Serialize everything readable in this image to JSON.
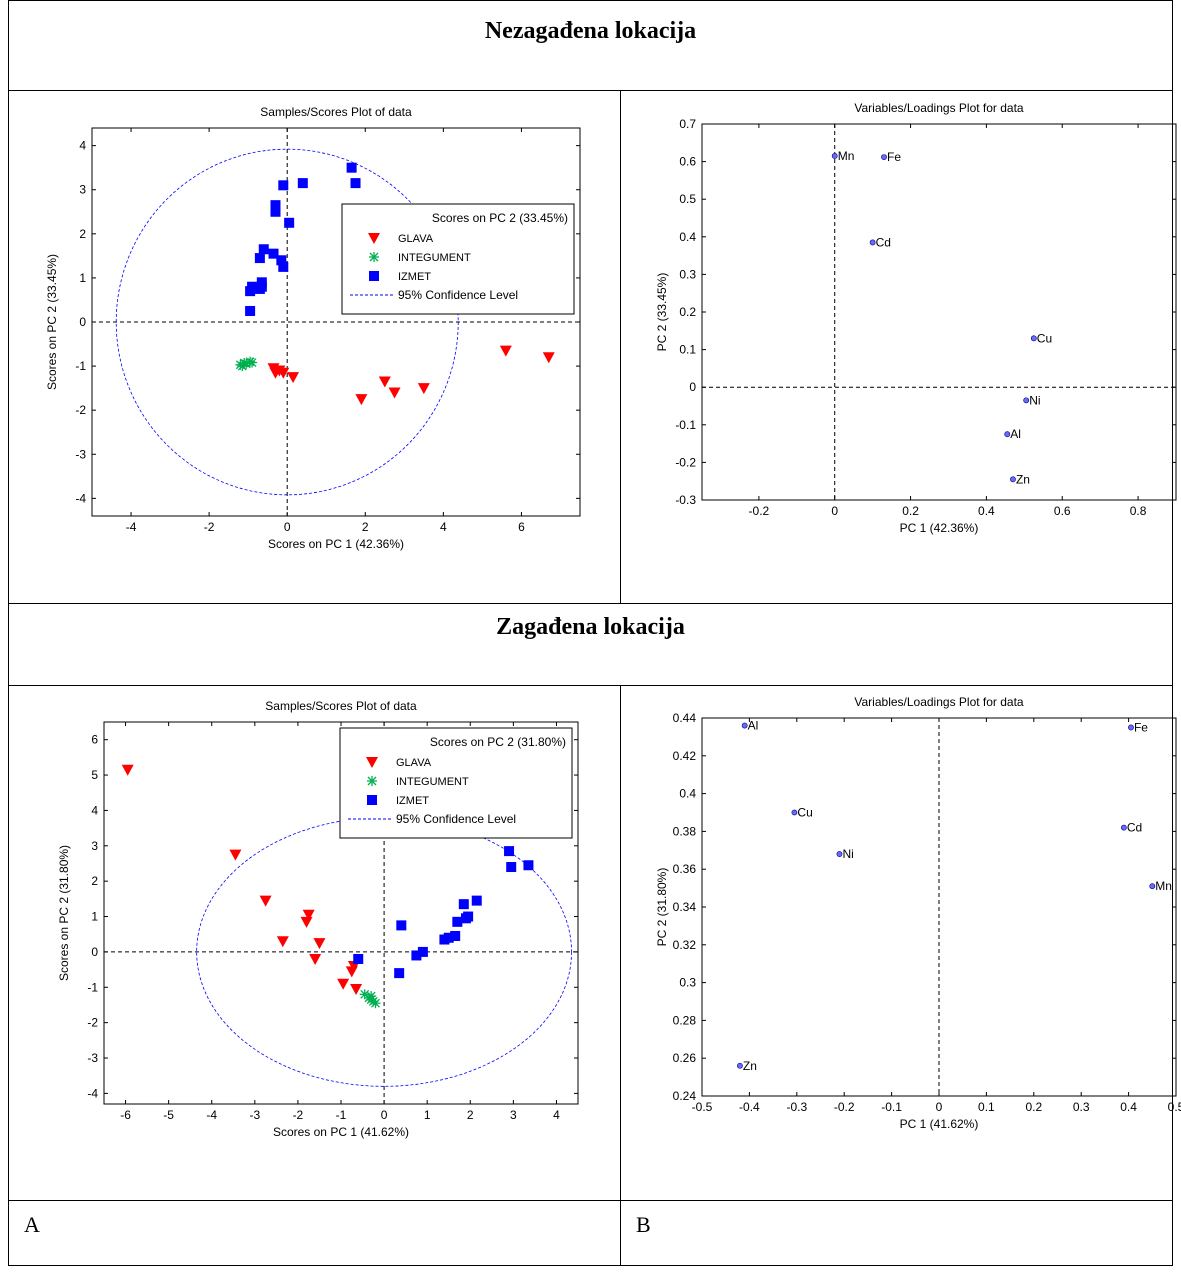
{
  "section_titles": {
    "top": "Nezagađena lokacija",
    "bottom": "Zagađena lokacija"
  },
  "panel_labels": {
    "a": "A",
    "b": "B"
  },
  "chart_data": [
    {
      "id": "top-scores",
      "type": "scatter",
      "title": "Samples/Scores Plot of data",
      "xlabel": "Scores on PC 1 (42.36%)",
      "ylabel": "Scores on PC 2 (33.45%)",
      "xlim": [
        -5,
        7.5
      ],
      "ylim": [
        -4.4,
        4.4
      ],
      "xticks": [
        -4,
        -2,
        0,
        2,
        4,
        6
      ],
      "yticks": [
        -4,
        -3,
        -2,
        -1,
        0,
        1,
        2,
        3,
        4
      ],
      "ellipse": {
        "rx": 4.38,
        "ry": 3.92
      },
      "legend": {
        "position": "top-right",
        "title": "Scores on PC 2 (33.45%)",
        "confidence_label": "95% Confidence Level"
      },
      "series": [
        {
          "name": "GLAVA",
          "marker": "triangle-down",
          "color": "#ff0000",
          "points": [
            [
              -0.35,
              -1.05
            ],
            [
              -0.3,
              -1.15
            ],
            [
              -0.2,
              -1.1
            ],
            [
              -0.1,
              -1.15
            ],
            [
              0.15,
              -1.25
            ],
            [
              1.9,
              -1.75
            ],
            [
              2.5,
              -1.35
            ],
            [
              2.75,
              -1.6
            ],
            [
              3.5,
              -1.5
            ],
            [
              5.6,
              -0.65
            ],
            [
              6.7,
              -0.8
            ]
          ]
        },
        {
          "name": "INTEGUMENT",
          "marker": "asterisk",
          "color": "#00b050",
          "points": [
            [
              -1.2,
              -0.97
            ],
            [
              -1.1,
              -0.93
            ],
            [
              -1.05,
              -0.95
            ],
            [
              -0.95,
              -0.9
            ],
            [
              -0.9,
              -0.92
            ],
            [
              -1.15,
              -1.0
            ]
          ]
        },
        {
          "name": "IZMET",
          "marker": "square",
          "color": "#0000ff",
          "points": [
            [
              -0.95,
              0.25
            ],
            [
              -0.95,
              0.7
            ],
            [
              -0.9,
              0.8
            ],
            [
              -0.7,
              0.75
            ],
            [
              -0.65,
              0.8
            ],
            [
              -0.65,
              0.9
            ],
            [
              -0.7,
              1.45
            ],
            [
              -0.6,
              1.65
            ],
            [
              -0.35,
              1.55
            ],
            [
              -0.15,
              1.4
            ],
            [
              -0.1,
              1.25
            ],
            [
              -0.3,
              2.5
            ],
            [
              -0.3,
              2.65
            ],
            [
              0.05,
              2.25
            ],
            [
              -0.1,
              3.1
            ],
            [
              0.4,
              3.15
            ],
            [
              1.65,
              3.5
            ],
            [
              1.75,
              3.15
            ]
          ]
        }
      ]
    },
    {
      "id": "top-loadings",
      "type": "scatter",
      "title": "Variables/Loadings Plot for data",
      "xlabel": "PC 1 (42.36%)",
      "ylabel": "PC 2 (33.45%)",
      "xlim": [
        -0.35,
        0.9
      ],
      "ylim": [
        -0.3,
        0.7
      ],
      "xticks": [
        -0.2,
        0,
        0.2,
        0.4,
        0.6,
        0.8
      ],
      "yticks": [
        -0.3,
        -0.2,
        -0.1,
        0,
        0.1,
        0.2,
        0.3,
        0.4,
        0.5,
        0.6,
        0.7
      ],
      "marker_color": "#6a6aff",
      "points": [
        {
          "label": "Mn",
          "x": 0.0,
          "y": 0.615
        },
        {
          "label": "Fe",
          "x": 0.13,
          "y": 0.612
        },
        {
          "label": "Cd",
          "x": 0.1,
          "y": 0.385
        },
        {
          "label": "Cu",
          "x": 0.525,
          "y": 0.13
        },
        {
          "label": "Ni",
          "x": 0.505,
          "y": -0.035
        },
        {
          "label": "Al",
          "x": 0.455,
          "y": -0.125
        },
        {
          "label": "Zn",
          "x": 0.47,
          "y": -0.245
        }
      ]
    },
    {
      "id": "bottom-scores",
      "type": "scatter",
      "title": "Samples/Scores Plot of data",
      "xlabel": "Scores on PC 1 (41.62%)",
      "ylabel": "Scores on PC 2 (31.80%)",
      "xlim": [
        -6.5,
        4.5
      ],
      "ylim": [
        -4.3,
        6.5
      ],
      "xticks": [
        -6,
        -5,
        -4,
        -3,
        -2,
        -1,
        0,
        1,
        2,
        3,
        4
      ],
      "yticks": [
        -4,
        -3,
        -2,
        -1,
        0,
        1,
        2,
        3,
        4,
        5,
        6
      ],
      "ellipse": {
        "rx": 4.35,
        "ry": 3.8
      },
      "legend": {
        "position": "top-right",
        "title": "Scores on PC 2 (31.80%)",
        "confidence_label": "95% Confidence Level"
      },
      "series": [
        {
          "name": "GLAVA",
          "marker": "triangle-down",
          "color": "#ff0000",
          "points": [
            [
              -5.95,
              5.15
            ],
            [
              -3.45,
              2.75
            ],
            [
              -2.75,
              1.45
            ],
            [
              -2.35,
              0.3
            ],
            [
              -1.75,
              1.05
            ],
            [
              -1.8,
              0.85
            ],
            [
              -1.5,
              0.25
            ],
            [
              -1.6,
              -0.2
            ],
            [
              -0.95,
              -0.9
            ],
            [
              -0.75,
              -0.55
            ],
            [
              -0.7,
              -0.4
            ],
            [
              -0.65,
              -1.05
            ]
          ]
        },
        {
          "name": "INTEGUMENT",
          "marker": "asterisk",
          "color": "#00b050",
          "points": [
            [
              -0.45,
              -1.2
            ],
            [
              -0.35,
              -1.3
            ],
            [
              -0.3,
              -1.35
            ],
            [
              -0.25,
              -1.4
            ],
            [
              -0.2,
              -1.45
            ],
            [
              -0.3,
              -1.25
            ]
          ]
        },
        {
          "name": "IZMET",
          "marker": "square",
          "color": "#0000ff",
          "points": [
            [
              -0.6,
              -0.2
            ],
            [
              0.35,
              -0.6
            ],
            [
              0.4,
              0.75
            ],
            [
              0.75,
              -0.1
            ],
            [
              0.9,
              0.0
            ],
            [
              1.4,
              0.35
            ],
            [
              1.5,
              0.4
            ],
            [
              1.65,
              0.45
            ],
            [
              1.7,
              0.85
            ],
            [
              1.85,
              1.35
            ],
            [
              1.9,
              0.95
            ],
            [
              1.95,
              1.0
            ],
            [
              2.15,
              1.45
            ],
            [
              2.9,
              2.85
            ],
            [
              2.95,
              2.4
            ],
            [
              3.35,
              2.45
            ]
          ]
        }
      ]
    },
    {
      "id": "bottom-loadings",
      "type": "scatter",
      "title": "Variables/Loadings Plot for data",
      "xlabel": "PC 1 (41.62%)",
      "ylabel": "PC 2 (31.80%)",
      "xlim": [
        -0.5,
        0.5
      ],
      "ylim": [
        0.24,
        0.44
      ],
      "xticks": [
        -0.5,
        -0.4,
        -0.3,
        -0.2,
        -0.1,
        0,
        0.1,
        0.2,
        0.3,
        0.4,
        0.5
      ],
      "xtick_labels": [
        "-0.5",
        "-0.4",
        "-0.3",
        "-0.2",
        "-0.1",
        "0",
        "0.1",
        "0.2",
        "0.3",
        "0.4",
        "0.5"
      ],
      "yticks": [
        0.24,
        0.26,
        0.28,
        0.3,
        0.32,
        0.34,
        0.36,
        0.38,
        0.4,
        0.42,
        0.44
      ],
      "marker_color": "#6a6aff",
      "points": [
        {
          "label": "Al",
          "x": -0.41,
          "y": 0.436
        },
        {
          "label": "Fe",
          "x": 0.405,
          "y": 0.435
        },
        {
          "label": "Cu",
          "x": -0.305,
          "y": 0.39
        },
        {
          "label": "Cd",
          "x": 0.39,
          "y": 0.382
        },
        {
          "label": "Ni",
          "x": -0.21,
          "y": 0.368
        },
        {
          "label": "Mn",
          "x": 0.45,
          "y": 0.351
        },
        {
          "label": "Zn",
          "x": -0.42,
          "y": 0.256
        }
      ]
    }
  ]
}
